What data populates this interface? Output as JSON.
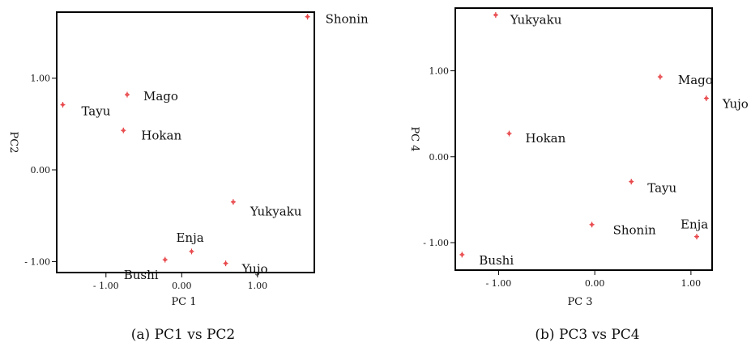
{
  "colors": {
    "marker": "#e8474a",
    "frame": "#000000",
    "text": "#111111"
  },
  "chart_data": [
    {
      "type": "scatter",
      "caption": "(a) PC1 vs PC2",
      "xlabel": "PC 1",
      "ylabel": "PC2",
      "xlim": [
        -1.65,
        1.75
      ],
      "ylim": [
        -1.12,
        1.72
      ],
      "xticks": [
        -1.0,
        0.0,
        1.0
      ],
      "xtick_labels": [
        "- 1.00",
        "0.00",
        "1.00"
      ],
      "yticks": [
        -1.0,
        0.0,
        1.0
      ],
      "ytick_labels": [
        "- 1.00",
        "0.00",
        "1.00"
      ],
      "grid": false,
      "points": [
        {
          "label": "Shonin",
          "x": 1.66,
          "y": 1.67
        },
        {
          "label": "Mago",
          "x": -0.72,
          "y": 0.82
        },
        {
          "label": "Tayu",
          "x": -1.57,
          "y": 0.71
        },
        {
          "label": "Hokan",
          "x": -0.77,
          "y": 0.43
        },
        {
          "label": "Yukyaku",
          "x": 0.68,
          "y": -0.35
        },
        {
          "label": "Enja",
          "x": 0.13,
          "y": -0.89
        },
        {
          "label": "Bushi",
          "x": -0.22,
          "y": -0.98
        },
        {
          "label": "Yujo",
          "x": 0.58,
          "y": -1.02
        }
      ]
    },
    {
      "type": "scatter",
      "caption": "(b) PC3 vs PC4",
      "xlabel": "PC 3",
      "ylabel": "PC 4",
      "xlim": [
        -1.45,
        1.22
      ],
      "ylim": [
        -1.32,
        1.73
      ],
      "xticks": [
        -1.0,
        0.0,
        1.0
      ],
      "xtick_labels": [
        "- 1.00",
        "0.00",
        "1.00"
      ],
      "yticks": [
        -1.0,
        0.0,
        1.0
      ],
      "ytick_labels": [
        "- 1.00",
        "0.00",
        "1.00"
      ],
      "grid": false,
      "points": [
        {
          "label": "Yukyaku",
          "x": -1.03,
          "y": 1.65
        },
        {
          "label": "Mago",
          "x": 0.68,
          "y": 0.93
        },
        {
          "label": "Yujo",
          "x": 1.16,
          "y": 0.68
        },
        {
          "label": "Hokan",
          "x": -0.89,
          "y": 0.27
        },
        {
          "label": "Tayu",
          "x": 0.38,
          "y": -0.29
        },
        {
          "label": "Shonin",
          "x": -0.03,
          "y": -0.79
        },
        {
          "label": "Enja",
          "x": 1.06,
          "y": -0.93
        },
        {
          "label": "Bushi",
          "x": -1.38,
          "y": -1.14
        }
      ]
    }
  ]
}
